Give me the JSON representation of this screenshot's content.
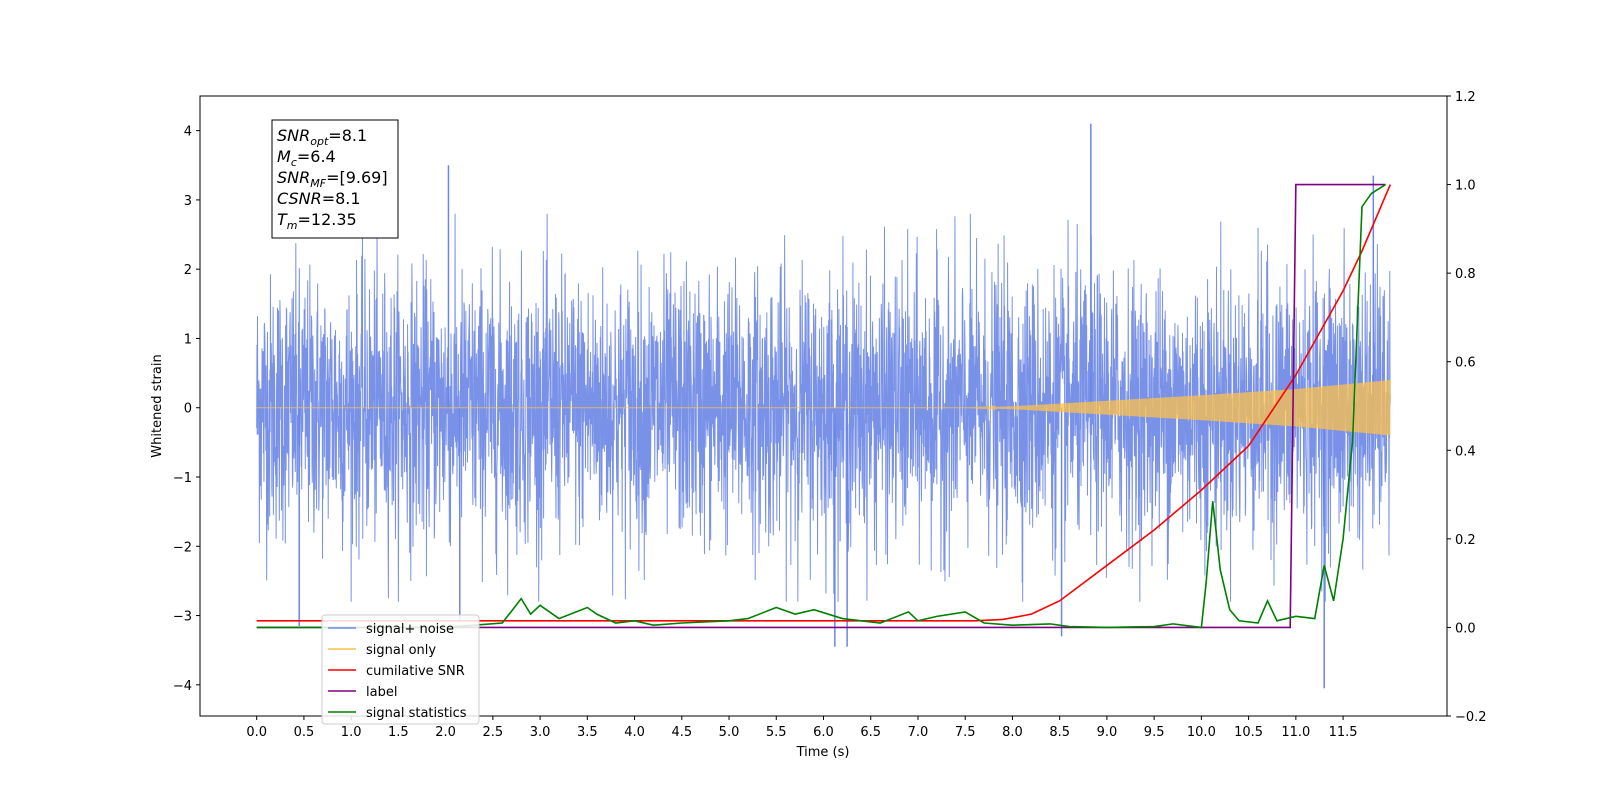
{
  "chart_data": {
    "type": "line",
    "xlabel": "Time (s)",
    "ylabel": "Whitened strain",
    "xlim": [
      -0.6,
      12.6
    ],
    "ylim": [
      -4.45,
      4.5
    ],
    "y2lim": [
      -0.2,
      1.2
    ],
    "x_ticks": [
      0.0,
      0.5,
      1.0,
      1.5,
      2.0,
      2.5,
      3.0,
      3.5,
      4.0,
      4.5,
      5.0,
      5.5,
      6.0,
      6.5,
      7.0,
      7.5,
      8.0,
      8.5,
      9.0,
      9.5,
      10.0,
      10.5,
      11.0,
      11.5
    ],
    "x_tick_labels": [
      "0.0",
      "0.5",
      "1.0",
      "1.5",
      "2.0",
      "2.5",
      "3.0",
      "3.5",
      "4.0",
      "4.5",
      "5.0",
      "5.5",
      "6.0",
      "6.5",
      "7.0",
      "7.5",
      "8.0",
      "8.5",
      "9.0",
      "9.5",
      "10.0",
      "10.5",
      "11.0",
      "11.5"
    ],
    "y_ticks": [
      -4,
      -3,
      -2,
      -1,
      0,
      1,
      2,
      3,
      4
    ],
    "y_tick_labels": [
      "−4",
      "−3",
      "−2",
      "−1",
      "0",
      "1",
      "2",
      "3",
      "4"
    ],
    "y2_ticks": [
      -0.2,
      0.0,
      0.2,
      0.4,
      0.6,
      0.8,
      1.0,
      1.2
    ],
    "y2_tick_labels": [
      "−0.2",
      "0.0",
      "0.2",
      "0.4",
      "0.6",
      "0.8",
      "1.0",
      "1.2"
    ],
    "info_box": [
      {
        "main": "SNR",
        "sub": "opt",
        "value": "=8.1"
      },
      {
        "main": "M",
        "sub": "c",
        "value": "=6.4"
      },
      {
        "main": "SNR",
        "sub": "MF",
        "value": "=[9.69]"
      },
      {
        "main": "CSNR",
        "sub": "",
        "value": "=8.1"
      },
      {
        "main": "T",
        "sub": "m",
        "value": "=12.35"
      }
    ],
    "legend": {
      "location": "lower-left",
      "entries": [
        {
          "label": "signal+ noise",
          "color": "#6a86e6"
        },
        {
          "label": "signal only",
          "color": "#ffc04c"
        },
        {
          "label": "cumilative SNR",
          "color": "#ff0000"
        },
        {
          "label": "label",
          "color": "#800080"
        },
        {
          "label": "signal statistics",
          "color": "#008000"
        }
      ]
    },
    "series": [
      {
        "name": "signal+ noise",
        "axis": "left",
        "color": "#6a86e6",
        "t_start": 0.0,
        "t_end": 12.0,
        "envelope_typical": 2.0,
        "peaks": [
          {
            "x": 0.45,
            "y": -3.15
          },
          {
            "x": 2.03,
            "y": 3.5
          },
          {
            "x": 2.15,
            "y": -3.1
          },
          {
            "x": 6.12,
            "y": -3.45
          },
          {
            "x": 6.25,
            "y": -3.45
          },
          {
            "x": 8.52,
            "y": -3.3
          },
          {
            "x": 8.83,
            "y": 4.1
          },
          {
            "x": 11.3,
            "y": -4.05
          },
          {
            "x": 11.82,
            "y": 3.35
          }
        ]
      },
      {
        "name": "signal only",
        "axis": "left",
        "color": "#ffc04c",
        "envelope": [
          [
            0.0,
            0.0
          ],
          [
            7.5,
            0.0
          ],
          [
            8.0,
            0.02
          ],
          [
            9.0,
            0.1
          ],
          [
            10.0,
            0.18
          ],
          [
            11.0,
            0.27
          ],
          [
            12.0,
            0.4
          ]
        ]
      },
      {
        "name": "cumilative SNR",
        "axis": "right",
        "color": "#ff0000",
        "x": [
          0.0,
          7.6,
          7.9,
          8.2,
          8.5,
          9.0,
          9.5,
          10.0,
          10.5,
          11.0,
          11.5,
          11.7,
          11.9,
          12.0
        ],
        "y": [
          0.015,
          0.015,
          0.018,
          0.03,
          0.06,
          0.14,
          0.22,
          0.31,
          0.41,
          0.57,
          0.76,
          0.85,
          0.95,
          1.0
        ]
      },
      {
        "name": "label",
        "axis": "right",
        "color": "#800080",
        "x": [
          0.0,
          10.94,
          11.0,
          11.02,
          11.95
        ],
        "y": [
          0.0,
          0.0,
          1.0,
          1.0,
          1.0
        ]
      },
      {
        "name": "signal statistics",
        "axis": "right",
        "color": "#008000",
        "x": [
          0.0,
          2.0,
          2.3,
          2.6,
          2.8,
          2.9,
          3.0,
          3.2,
          3.5,
          3.6,
          3.8,
          4.0,
          4.2,
          4.5,
          5.0,
          5.2,
          5.5,
          5.7,
          5.9,
          6.2,
          6.4,
          6.6,
          6.9,
          7.0,
          7.2,
          7.5,
          7.7,
          8.0,
          8.4,
          8.6,
          9.0,
          9.5,
          9.7,
          10.0,
          10.05,
          10.12,
          10.2,
          10.3,
          10.4,
          10.6,
          10.7,
          10.8,
          10.9,
          11.0,
          11.2,
          11.3,
          11.4,
          11.5,
          11.6,
          11.7,
          11.8,
          11.95
        ],
        "y": [
          0.0,
          0.0,
          0.005,
          0.01,
          0.065,
          0.03,
          0.05,
          0.02,
          0.045,
          0.03,
          0.01,
          0.015,
          0.005,
          0.01,
          0.015,
          0.02,
          0.045,
          0.03,
          0.04,
          0.02,
          0.015,
          0.01,
          0.035,
          0.015,
          0.025,
          0.035,
          0.01,
          0.005,
          0.008,
          0.002,
          0.0,
          0.002,
          0.008,
          0.0,
          0.1,
          0.285,
          0.13,
          0.04,
          0.015,
          0.01,
          0.06,
          0.015,
          0.02,
          0.025,
          0.02,
          0.14,
          0.06,
          0.2,
          0.42,
          0.95,
          0.98,
          1.0
        ]
      }
    ]
  }
}
